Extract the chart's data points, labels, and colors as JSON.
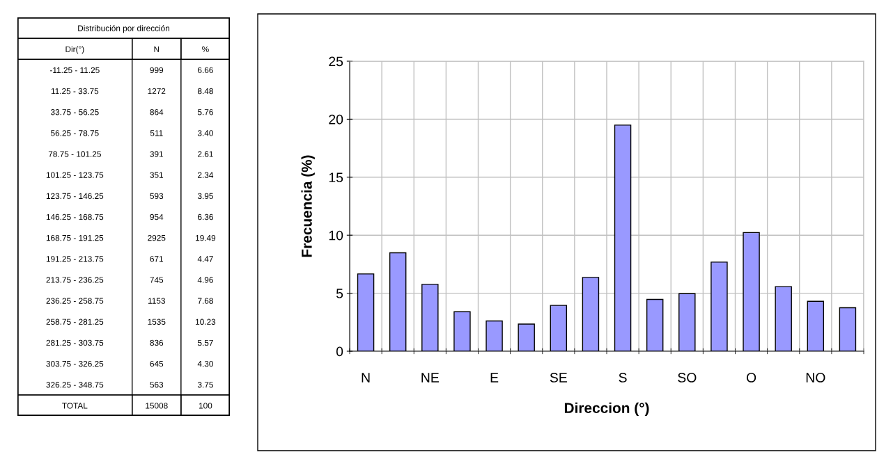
{
  "chart_data": [
    {
      "type": "other",
      "title": "Distribución por dirección",
      "xlabel": "Dir(°)",
      "categories": [
        "-11.25 - 11.25",
        "11.25 - 33.75",
        "33.75 - 56.25",
        "56.25 - 78.75",
        "78.75 - 101.25",
        "101.25 - 123.75",
        "123.75 - 146.25",
        "146.25 - 168.75",
        "168.75 - 191.25",
        "191.25 - 213.75",
        "213.75 - 236.25",
        "236.25 - 258.75",
        "258.75 - 281.25",
        "281.25 - 303.75",
        "303.75 - 326.25",
        "326.25 - 348.75"
      ],
      "series": [
        {
          "name": "N",
          "values": [
            999,
            1272,
            864,
            511,
            391,
            351,
            593,
            954,
            2925,
            671,
            745,
            1153,
            1535,
            836,
            645,
            563
          ]
        },
        {
          "name": "%",
          "values": [
            6.66,
            8.48,
            5.76,
            3.4,
            2.61,
            2.34,
            3.95,
            6.36,
            19.49,
            4.47,
            4.96,
            7.68,
            10.23,
            5.57,
            4.3,
            3.75
          ],
          "value_labels": [
            "6.66",
            "8.48",
            "5.76",
            "3.40",
            "2.61",
            "2.34",
            "3.95",
            "6.36",
            "19.49",
            "4.47",
            "4.96",
            "7.68",
            "10.23",
            "5.57",
            "4.30",
            "3.75"
          ]
        }
      ],
      "data_labels": true,
      "annotations": [
        "TOTAL"
      ],
      "totals": [
        "15008",
        "100"
      ]
    },
    {
      "type": "bar",
      "xlabel": "Direccion (°)",
      "ylabel": "Frecuencia (%)",
      "categories": [
        "N",
        null,
        "NE",
        null,
        "E",
        null,
        "SE",
        null,
        "S",
        null,
        "SO",
        null,
        "O",
        null,
        "NO",
        null
      ],
      "values": [
        6.66,
        8.48,
        5.76,
        3.4,
        2.61,
        2.34,
        3.95,
        6.36,
        19.49,
        4.47,
        4.96,
        7.68,
        10.23,
        5.57,
        4.3,
        3.75
      ],
      "color": "#9999ff",
      "ylim": [
        0,
        25
      ],
      "yticks": [
        0,
        5,
        10,
        15,
        20,
        25
      ],
      "grid": true
    }
  ]
}
